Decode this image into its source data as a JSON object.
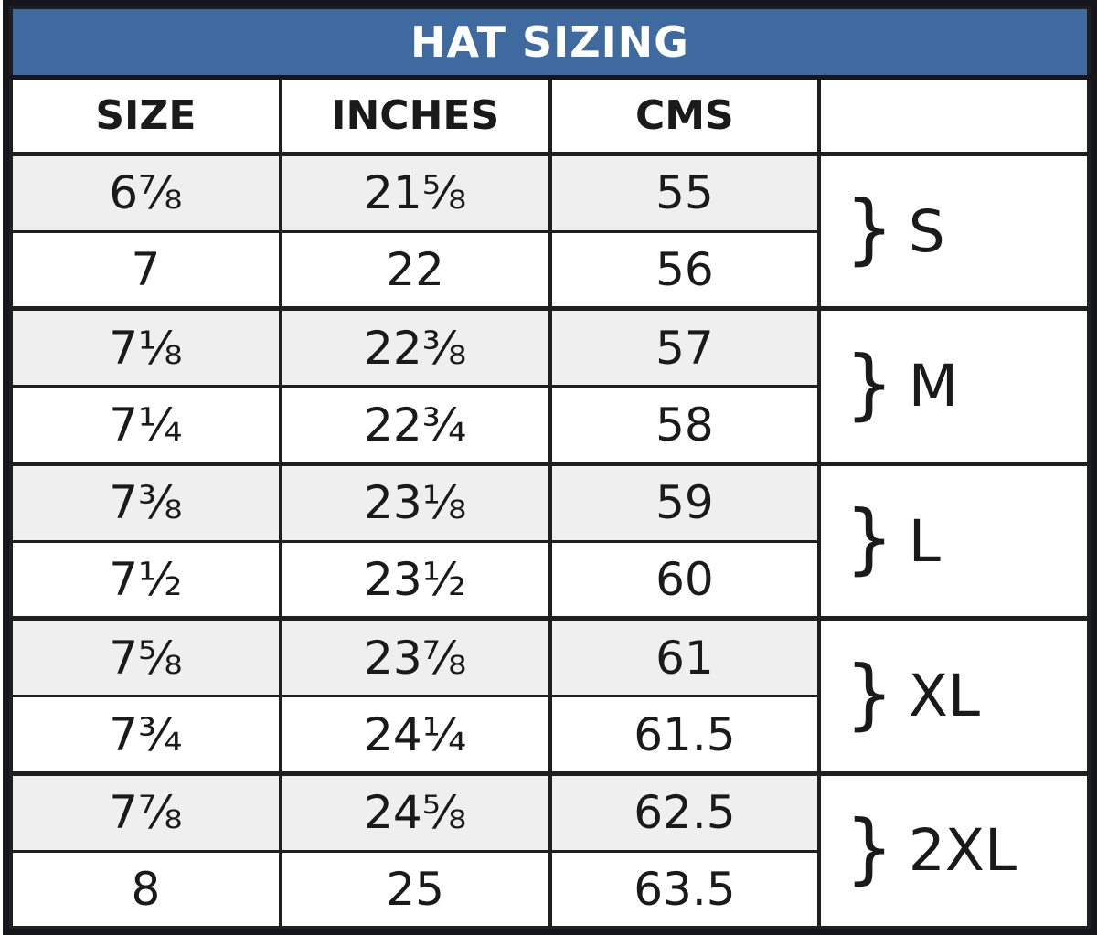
{
  "title_bar": {
    "title": "HAT SIZING"
  },
  "colors": {
    "header_bg": "#3e6aa0",
    "header_text": "#ffffff",
    "border_dark": "#14161c",
    "line": "#1f1f1f",
    "text": "#1a1a1a",
    "row_bg": "#ffffff",
    "row_alt_bg": "#f0eff0"
  },
  "chart_data": {
    "type": "table",
    "title": "HAT SIZING",
    "columns": [
      "SIZE",
      "INCHES",
      "CMS"
    ],
    "brace": "}",
    "groups": [
      "S",
      "M",
      "L",
      "XL",
      "2XL"
    ],
    "rows": [
      {
        "size": "6⅞",
        "inches": "21⅝",
        "cms": "55",
        "group": "S"
      },
      {
        "size": "7",
        "inches": "22",
        "cms": "56",
        "group": "S"
      },
      {
        "size": "7⅛",
        "inches": "22⅜",
        "cms": "57",
        "group": "M"
      },
      {
        "size": "7¼",
        "inches": "22¾",
        "cms": "58",
        "group": "M"
      },
      {
        "size": "7⅜",
        "inches": "23⅛",
        "cms": "59",
        "group": "L"
      },
      {
        "size": "7½",
        "inches": "23½",
        "cms": "60",
        "group": "L"
      },
      {
        "size": "7⅝",
        "inches": "23⅞",
        "cms": "61",
        "group": "XL"
      },
      {
        "size": "7¾",
        "inches": "24¼",
        "cms": "61.5",
        "group": "XL"
      },
      {
        "size": "7⅞",
        "inches": "24⅝",
        "cms": "62.5",
        "group": "2XL"
      },
      {
        "size": "8",
        "inches": "25",
        "cms": "63.5",
        "group": "2XL"
      }
    ]
  }
}
